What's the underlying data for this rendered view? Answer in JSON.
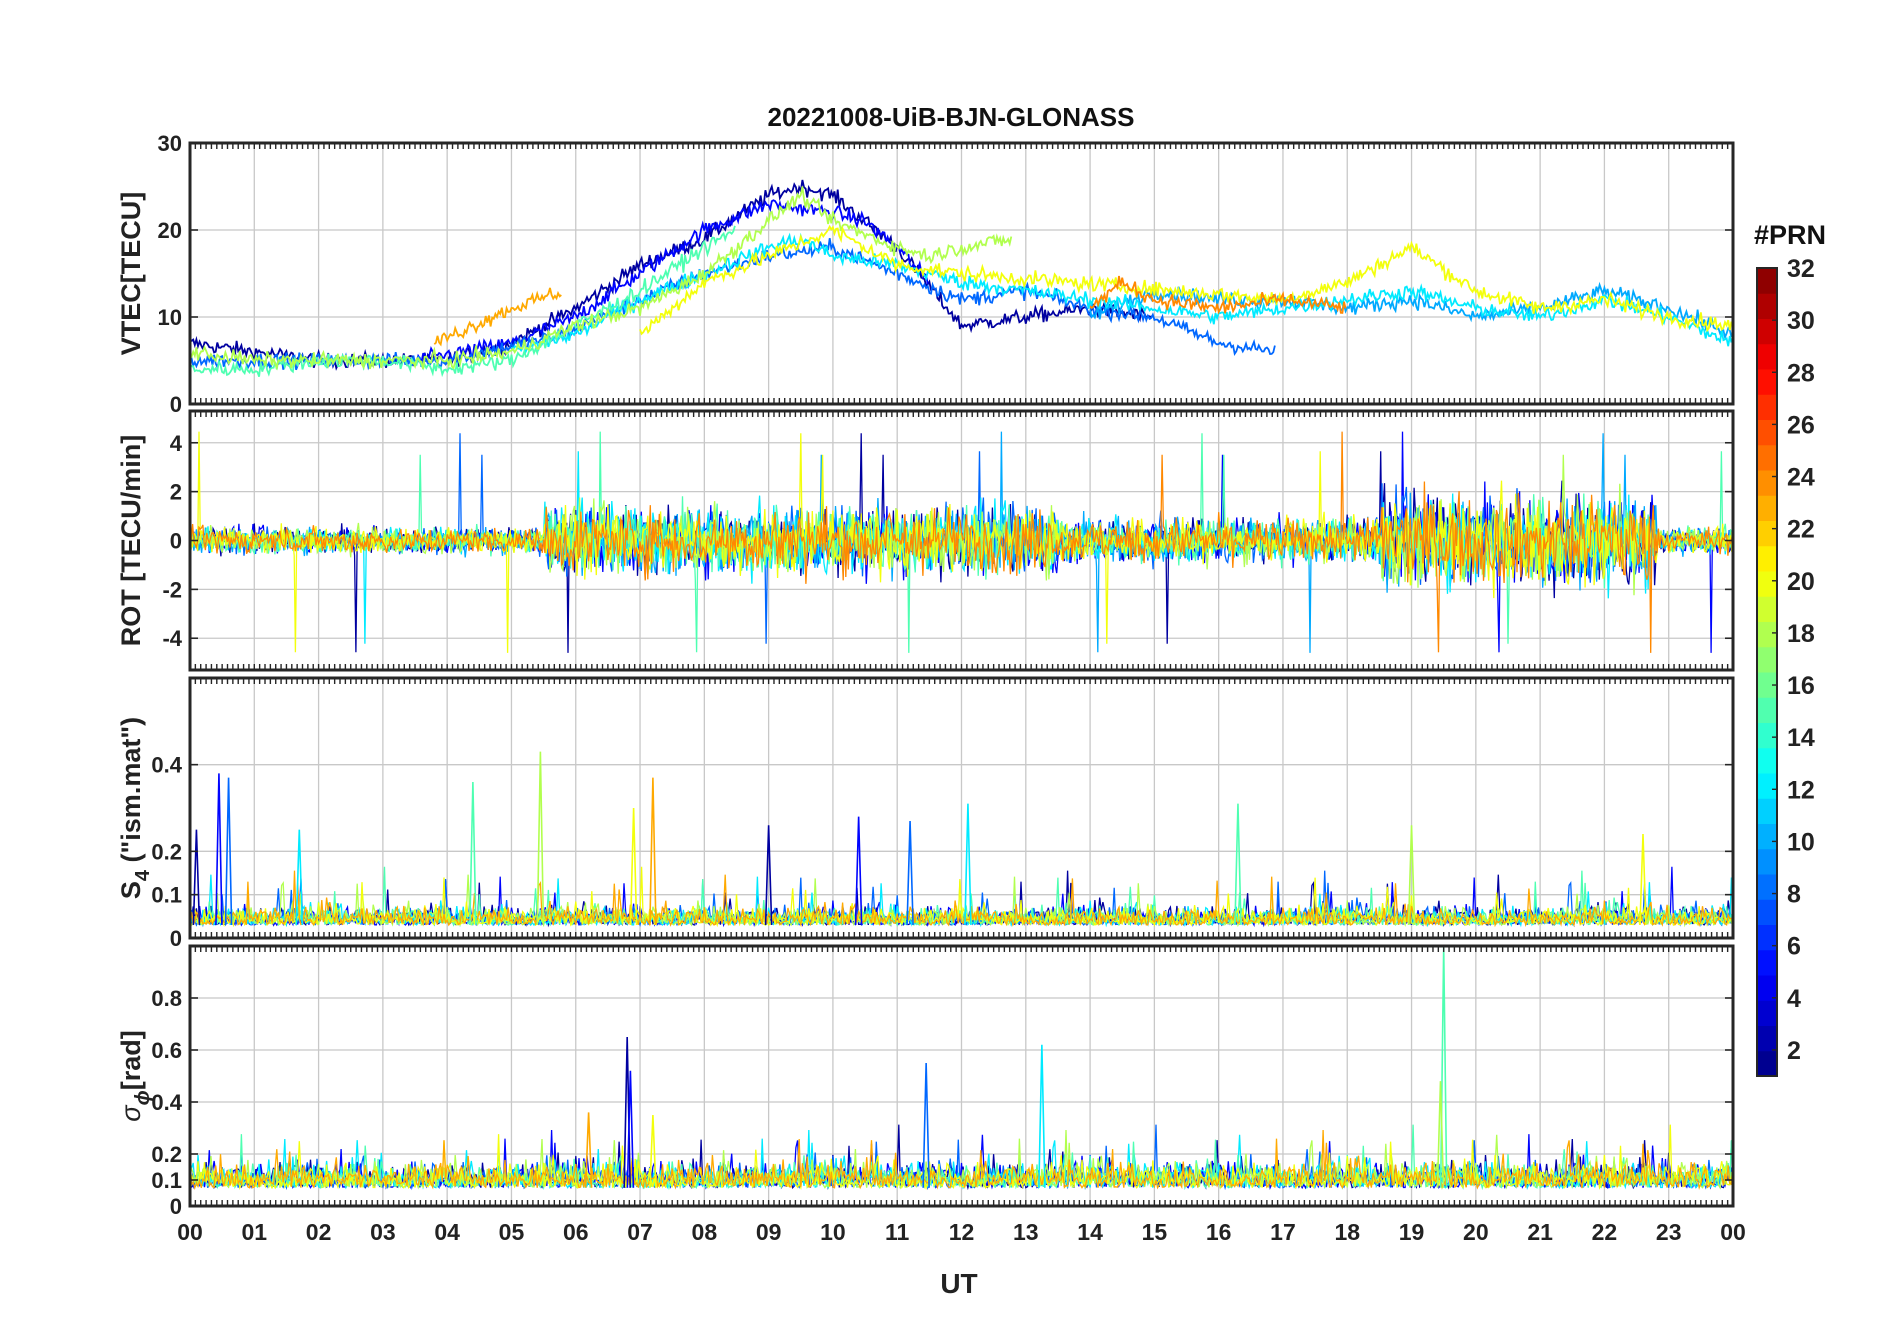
{
  "title": "20221008-UiB-BJN-GLONASS",
  "xlabel": "UT",
  "colorbar": {
    "label": "#PRN",
    "range": [
      1,
      32
    ],
    "ticks": [
      "2",
      "4",
      "6",
      "8",
      "10",
      "12",
      "14",
      "16",
      "18",
      "20",
      "22",
      "24",
      "26",
      "28",
      "30",
      "32"
    ],
    "colormap": "jet"
  },
  "chart_data": [
    {
      "type": "line",
      "panel": "vtec",
      "ylabel": "VTEC[TECU]",
      "xlim": [
        0,
        24
      ],
      "ylim": [
        0,
        30
      ],
      "yticks": [
        "0",
        "10",
        "20",
        "30"
      ],
      "xticklabels": [
        "00",
        "01",
        "02",
        "03",
        "04",
        "05",
        "06",
        "07",
        "08",
        "09",
        "10",
        "11",
        "12",
        "13",
        "14",
        "15",
        "16",
        "17",
        "18",
        "19",
        "20",
        "21",
        "22",
        "23",
        "00"
      ],
      "grid": true,
      "series": [
        {
          "prn": 2,
          "x": [
            0,
            2,
            4,
            5,
            6,
            7,
            8,
            9,
            9.5,
            10,
            11,
            12,
            13,
            14,
            15
          ],
          "y": [
            7,
            5,
            5,
            7,
            11,
            16,
            19,
            24,
            25,
            24,
            18,
            9,
            10,
            11,
            10
          ]
        },
        {
          "prn": 5,
          "x": [
            3.5,
            5,
            6,
            7,
            8,
            9,
            10,
            10.5,
            11,
            11.5
          ],
          "y": [
            5,
            7,
            10,
            15,
            20,
            23,
            22,
            21,
            18,
            14
          ]
        },
        {
          "prn": 8,
          "x": [
            0,
            2,
            4,
            5.8,
            7,
            8,
            9,
            10,
            11,
            12,
            13,
            14,
            15,
            16,
            16.9
          ],
          "y": [
            5,
            5,
            5,
            8,
            12,
            15,
            17,
            18,
            15,
            12,
            13,
            11,
            10,
            7,
            6
          ]
        },
        {
          "prn": 10,
          "x": [
            14,
            15,
            16,
            17,
            18,
            19,
            20,
            21,
            22,
            23,
            24
          ],
          "y": [
            10,
            13,
            12,
            12,
            11,
            12,
            10,
            11,
            13,
            11,
            8
          ]
        },
        {
          "prn": 12,
          "x": [
            5,
            6,
            7,
            8,
            9,
            9.5,
            10,
            11,
            12,
            13,
            14,
            15,
            16,
            17,
            18,
            19,
            20,
            21,
            22,
            23,
            24
          ],
          "y": [
            6,
            8,
            12,
            15,
            18,
            19,
            17,
            16,
            14,
            13,
            12,
            11,
            10,
            11,
            12,
            13,
            11,
            10,
            12,
            10,
            7
          ]
        },
        {
          "prn": 15,
          "x": [
            0,
            1,
            2,
            3,
            4,
            5,
            6,
            7,
            8,
            8.5
          ],
          "y": [
            4,
            4,
            5,
            5,
            4,
            5,
            9,
            13,
            18,
            20
          ]
        },
        {
          "prn": 18,
          "x": [
            0,
            1,
            2,
            3,
            4,
            5,
            6,
            7,
            8,
            9,
            9.5,
            10,
            11,
            11.5,
            12,
            12.8
          ],
          "y": [
            6,
            5,
            5,
            5,
            5,
            6,
            9,
            11,
            15,
            21,
            24,
            21,
            18,
            17,
            18,
            19
          ]
        },
        {
          "prn": 20,
          "x": [
            7,
            8,
            9,
            10,
            11,
            12,
            17,
            18,
            19,
            20,
            21,
            22,
            23,
            24
          ],
          "y": [
            8,
            14,
            17,
            20,
            16,
            15,
            12,
            14,
            18,
            13,
            11,
            12,
            10,
            9
          ]
        },
        {
          "prn": 23,
          "x": [
            3.8,
            5,
            5.8
          ],
          "y": [
            7,
            11,
            13
          ]
        },
        {
          "prn": 24,
          "x": [
            14,
            14.5,
            15,
            16,
            17,
            18
          ],
          "y": [
            11,
            14,
            12,
            11,
            12,
            11
          ]
        }
      ]
    },
    {
      "type": "line",
      "panel": "rot",
      "ylabel": "ROT [TECU/min]",
      "xlim": [
        0,
        24
      ],
      "ylim": [
        -5.3,
        5.3
      ],
      "yticks": [
        "-4",
        "-2",
        "0",
        "2",
        "4"
      ],
      "grid": true,
      "note_values": {
        "quiet_amplitude_00_05": 0.6,
        "active_amplitude_06_13": 2.5,
        "peak_values": [
          -5,
          4.8,
          -4.7,
          4.5,
          5,
          -4.2,
          5,
          5,
          -5,
          5
        ]
      }
    },
    {
      "type": "line",
      "panel": "s4",
      "ylabel": "S4 (\"ism.mat\")",
      "ylabel_main": "S",
      "ylabel_sub": "4",
      "ylabel_rest": " (\"ism.mat\")",
      "xlim": [
        0,
        24
      ],
      "ylim": [
        0,
        0.6
      ],
      "yticks": [
        "0",
        "0.1",
        "0.2",
        "0.4"
      ],
      "grid": true,
      "note_values": {
        "baseline": 0.03,
        "peaks": [
          [
            0.1,
            0.25
          ],
          [
            0.45,
            0.38
          ],
          [
            0.6,
            0.37
          ],
          [
            1.7,
            0.25
          ],
          [
            4.4,
            0.36
          ],
          [
            5.45,
            0.43
          ],
          [
            6.9,
            0.3
          ],
          [
            7.2,
            0.37
          ],
          [
            9,
            0.26
          ],
          [
            10.4,
            0.28
          ],
          [
            11.2,
            0.27
          ],
          [
            12.1,
            0.31
          ],
          [
            16.3,
            0.31
          ],
          [
            19,
            0.26
          ],
          [
            22.6,
            0.24
          ]
        ]
      }
    },
    {
      "type": "line",
      "panel": "sigma_phi",
      "ylabel": "σφ[rad]",
      "ylabel_main": "σ",
      "ylabel_sub": "ϕ",
      "ylabel_rest": "[rad]",
      "xlim": [
        0,
        24
      ],
      "ylim": [
        0,
        1
      ],
      "yticks": [
        "0",
        "0.1",
        "0.2",
        "0.4",
        "0.6",
        "0.8"
      ],
      "grid": true,
      "note_values": {
        "baseline": 0.07,
        "peaks": [
          [
            6.8,
            0.65
          ],
          [
            6.85,
            0.52
          ],
          [
            11.45,
            0.55
          ],
          [
            13.25,
            0.62
          ],
          [
            19.5,
            1.0
          ],
          [
            19.45,
            0.48
          ],
          [
            7.2,
            0.35
          ],
          [
            6.2,
            0.36
          ]
        ]
      }
    }
  ]
}
